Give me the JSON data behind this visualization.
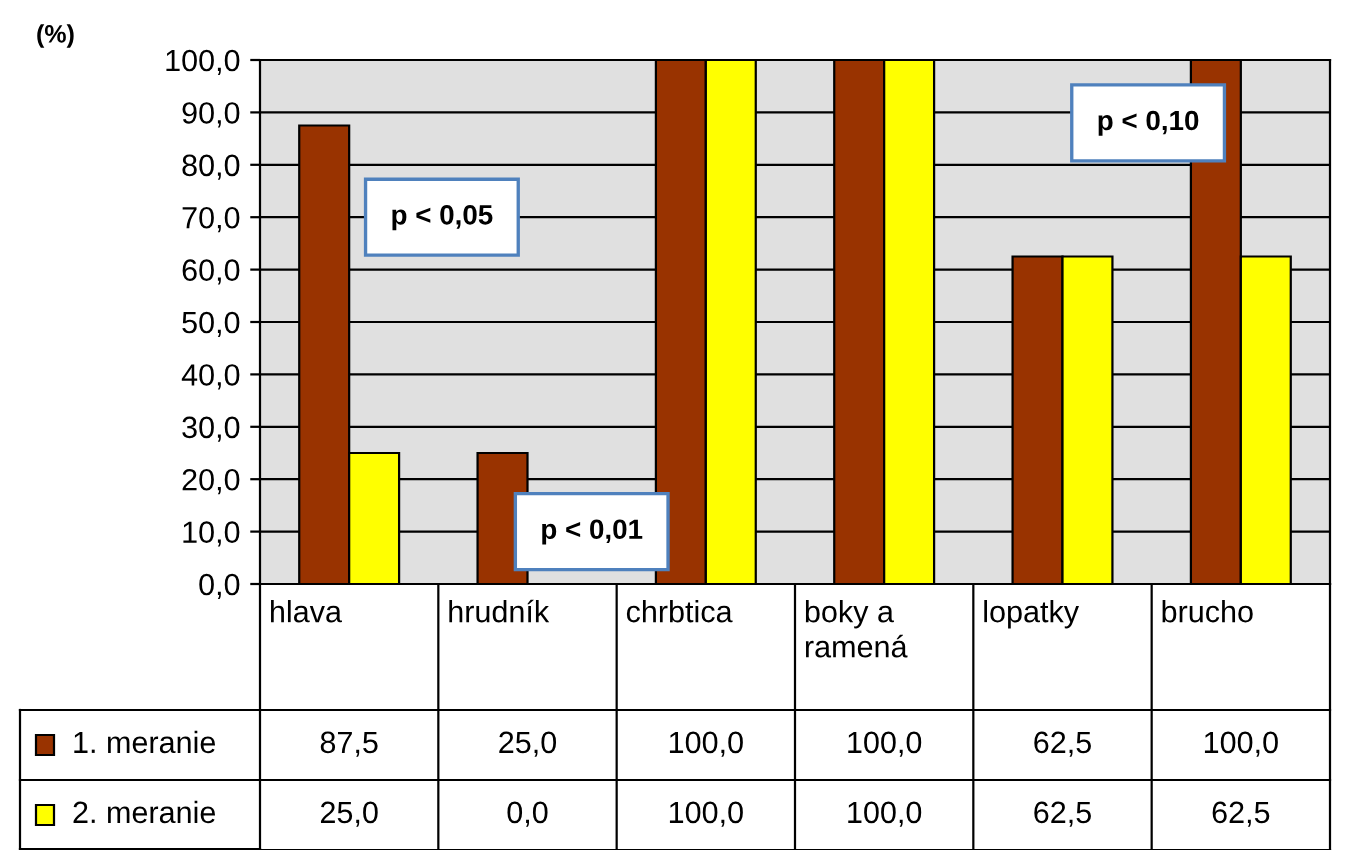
{
  "chart_data": {
    "type": "bar",
    "ylabel": "(%)",
    "categories": [
      "hlava",
      "hrudník",
      "chrbtica",
      "boky a ramená",
      "lopatky",
      "brucho"
    ],
    "series": [
      {
        "name": "1. meranie",
        "color": "#993300",
        "values": [
          87.5,
          25.0,
          100.0,
          100.0,
          62.5,
          100.0
        ],
        "value_labels": [
          "87,5",
          "25,0",
          "100,0",
          "100,0",
          "62,5",
          "100,0"
        ]
      },
      {
        "name": "2. meranie",
        "color": "#ffff00",
        "values": [
          25.0,
          0.0,
          100.0,
          100.0,
          62.5,
          62.5
        ],
        "value_labels": [
          "25,0",
          "0,0",
          "100,0",
          "100,0",
          "62,5",
          "62,5"
        ]
      }
    ],
    "ylim": [
      0,
      100
    ],
    "yticks": [
      {
        "value": 0,
        "label": "0,0"
      },
      {
        "value": 10,
        "label": "10,0"
      },
      {
        "value": 20,
        "label": "20,0"
      },
      {
        "value": 30,
        "label": "30,0"
      },
      {
        "value": 40,
        "label": "40,0"
      },
      {
        "value": 50,
        "label": "50,0"
      },
      {
        "value": 60,
        "label": "60,0"
      },
      {
        "value": 70,
        "label": "70,0"
      },
      {
        "value": 80,
        "label": "80,0"
      },
      {
        "value": 90,
        "label": "90,0"
      },
      {
        "value": 100,
        "label": "100,0"
      }
    ],
    "grid": "y",
    "legend": "bottom left",
    "annotations": [
      "p < 0,05",
      "p < 0,01",
      "p < 0,10"
    ]
  }
}
